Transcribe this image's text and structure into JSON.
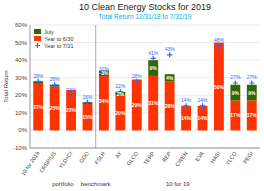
{
  "chart_data": {
    "type": "bar",
    "stacked": true,
    "title": "10 Clean Energy Stocks for 2019",
    "subtitle": "Total Return 12/31/18 to 7/31/19",
    "ylabel": "Total Return",
    "categories": [
      "10 for 2019",
      "CRSP/US",
      "YLD+CI",
      "GDO",
      "FSLR",
      "AY",
      "GLCO",
      "TERP",
      "BEP",
      "CWEN",
      "EVA",
      "HASI",
      "YLCO",
      "PEGI"
    ],
    "series": [
      {
        "name": "Year to 6/30",
        "type": "bar",
        "color": "#FF3300",
        "values": [
          27,
          25,
          23,
          15,
          34,
          20,
          29,
          31,
          28,
          14,
          14,
          50,
          17,
          17
        ],
        "value_labels": [
          "27%",
          "25%",
          "23%",
          "15%",
          "34%",
          "20%",
          "29%",
          "31%",
          "28%",
          "14%",
          "14%",
          "50%",
          "17%",
          "17%"
        ]
      },
      {
        "name": "July",
        "type": "bar",
        "color": "#336600",
        "values": [
          1,
          1,
          0,
          1,
          -3,
          2,
          0,
          9,
          4,
          0,
          0,
          0,
          9,
          9
        ],
        "value_labels": [
          null,
          null,
          null,
          null,
          "-3%",
          "2%",
          null,
          "9%",
          "4%",
          null,
          null,
          null,
          "9%",
          "9%"
        ]
      },
      {
        "name": "Year to 7/31",
        "type": "scatter",
        "marker": "plus",
        "color": "#3366FF",
        "values": [
          28,
          26,
          20,
          16,
          32,
          22,
          28,
          41,
          43,
          14,
          14,
          48,
          27,
          27
        ],
        "value_labels": [
          "28%",
          "26%",
          "20%",
          "16%",
          "32%",
          "22%",
          "28%",
          "41%",
          "43%",
          "14%",
          "14%",
          "48%",
          "27%",
          "27%"
        ]
      }
    ],
    "data_labels": true,
    "ylim": [
      -10,
      60
    ],
    "yticks": [
      {
        "value": -10,
        "label": "-10%"
      },
      {
        "value": 0,
        "label": "0%"
      },
      {
        "value": 10,
        "label": "10%"
      },
      {
        "value": 20,
        "label": "20%"
      },
      {
        "value": 30,
        "label": "30%"
      },
      {
        "value": 40,
        "label": "40%"
      },
      {
        "value": 50,
        "label": "50%"
      },
      {
        "value": 60,
        "label": "60%"
      }
    ],
    "grid": true,
    "legend": "upper left",
    "vlines": [
      3.5
    ],
    "annotations": [
      {
        "text": "portfolio",
        "x": 1.5
      },
      {
        "text": "benchmark",
        "x": 3.5
      },
      {
        "text": "10 for 19",
        "x": 8.5
      }
    ]
  }
}
